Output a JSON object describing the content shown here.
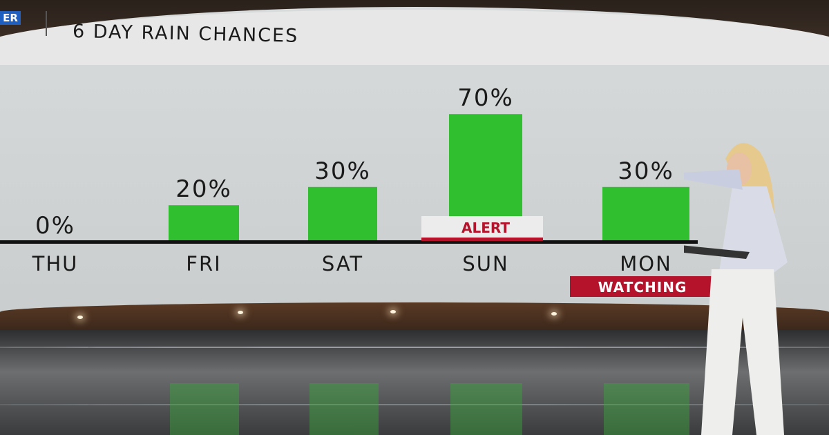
{
  "header": {
    "logo_text": "ER",
    "title": "6 DAY RAIN CHANCES"
  },
  "chart_data": {
    "type": "bar",
    "title": "6 DAY RAIN CHANCES",
    "categories": [
      "THU",
      "FRI",
      "SAT",
      "SUN",
      "MON"
    ],
    "values": [
      0,
      20,
      30,
      70,
      30
    ],
    "data_labels": [
      "0%",
      "20%",
      "30%",
      "70%",
      "30%"
    ],
    "ylim": [
      0,
      100
    ],
    "grid": false,
    "bar_color": "#2fbf2f",
    "tags": [
      {
        "category": "SUN",
        "text": "ALERT",
        "style": "light"
      },
      {
        "category": "MON",
        "text": "WATCHING",
        "style": "red"
      }
    ],
    "tag_color": "#b5122b"
  }
}
